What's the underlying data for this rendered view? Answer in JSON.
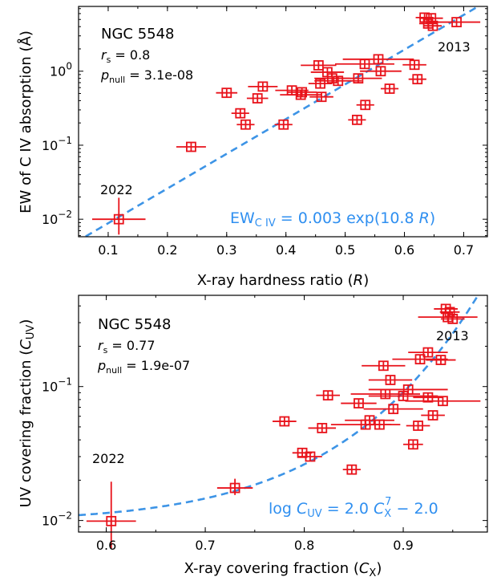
{
  "chart_data": [
    {
      "type": "scatter",
      "xlabel_main": "X-ray hardness ratio (",
      "xlabel_sym": "R",
      "xlabel_end": ")",
      "ylabel": "EW of C IV absorption (Å)",
      "xlim": [
        0.05,
        0.74
      ],
      "ylim": [
        0.0058,
        7.5
      ],
      "yscale": "log",
      "xticks": [
        "0.1",
        "0.2",
        "0.3",
        "0.4",
        "0.5",
        "0.6",
        "0.7"
      ],
      "xtick_values": [
        0.1,
        0.2,
        0.3,
        0.4,
        0.5,
        0.6,
        0.7
      ],
      "yticks": [
        {
          "value": 0.01,
          "base": "10",
          "exp": "−2"
        },
        {
          "value": 0.1,
          "base": "10",
          "exp": "−1"
        },
        {
          "value": 1,
          "base": "10",
          "exp": "0"
        }
      ],
      "annotations": {
        "object": "NGC 5548",
        "rs_sym": "r",
        "rs_sub": "s",
        "rs_val": " = 0.8",
        "pnull_sym": "p",
        "pnull_sub": "null",
        "pnull_val": " = 3.1e-08",
        "label_2013": "2013",
        "label_2022": "2022"
      },
      "fit": {
        "a": 0.003,
        "b": 10.8,
        "color": "#3d94e6"
      },
      "fit_label": {
        "lhs": "EW",
        "sub": "C IV",
        "mid": " = 0.003 exp(10.8 ",
        "sym": "R",
        "end": ")"
      },
      "points": [
        {
          "x": 0.118,
          "y": 0.01,
          "xerr": 0.045,
          "ylo": 0.0062,
          "yhi": 0.0195
        },
        {
          "x": 0.24,
          "y": 0.095,
          "xerr": 0.025
        },
        {
          "x": 0.3,
          "y": 0.51,
          "xerr": 0.018
        },
        {
          "x": 0.323,
          "y": 0.27,
          "xerr": 0.015
        },
        {
          "x": 0.332,
          "y": 0.19,
          "xerr": 0.015
        },
        {
          "x": 0.352,
          "y": 0.43,
          "xerr": 0.018
        },
        {
          "x": 0.361,
          "y": 0.62,
          "xerr": 0.025
        },
        {
          "x": 0.396,
          "y": 0.19,
          "xerr": 0.015
        },
        {
          "x": 0.41,
          "y": 0.55,
          "xerr": 0.028
        },
        {
          "x": 0.425,
          "y": 0.48,
          "xerr": 0.035
        },
        {
          "x": 0.427,
          "y": 0.52,
          "xerr": 0.025
        },
        {
          "x": 0.455,
          "y": 1.2,
          "xerr": 0.03
        },
        {
          "x": 0.458,
          "y": 0.68,
          "xerr": 0.02
        },
        {
          "x": 0.46,
          "y": 0.45,
          "xerr": 0.02
        },
        {
          "x": 0.47,
          "y": 0.97,
          "xerr": 0.028
        },
        {
          "x": 0.478,
          "y": 0.8,
          "xerr": 0.03
        },
        {
          "x": 0.488,
          "y": 0.74,
          "xerr": 0.04
        },
        {
          "x": 0.52,
          "y": 0.22,
          "xerr": 0.015
        },
        {
          "x": 0.522,
          "y": 0.8,
          "xerr": 0.04
        },
        {
          "x": 0.533,
          "y": 1.25,
          "xerr": 0.05
        },
        {
          "x": 0.534,
          "y": 0.35,
          "xerr": 0.015
        },
        {
          "x": 0.556,
          "y": 1.45,
          "xerr": 0.06
        },
        {
          "x": 0.56,
          "y": 1.0,
          "xerr": 0.035
        },
        {
          "x": 0.575,
          "y": 0.58,
          "xerr": 0.015
        },
        {
          "x": 0.617,
          "y": 1.22,
          "xerr": 0.02
        },
        {
          "x": 0.622,
          "y": 0.78,
          "xerr": 0.015
        },
        {
          "x": 0.634,
          "y": 5.3,
          "xerr": 0.015
        },
        {
          "x": 0.64,
          "y": 4.4,
          "xerr": 0.015
        },
        {
          "x": 0.645,
          "y": 5.2,
          "xerr": 0.02
        },
        {
          "x": 0.648,
          "y": 4.1,
          "xerr": 0.015
        },
        {
          "x": 0.688,
          "y": 4.6,
          "xerr": 0.04
        }
      ]
    },
    {
      "type": "scatter",
      "xlabel_main": "X-ray covering fraction (",
      "xlabel_sym": "C",
      "xlabel_sub": "X",
      "xlabel_end": ")",
      "ylabel_main": "UV covering fraction (",
      "ylabel_sym": "C",
      "ylabel_sub": "UV",
      "ylabel_end": ")",
      "xlim": [
        0.572,
        0.985
      ],
      "ylim": [
        0.0082,
        0.48
      ],
      "yscale": "log",
      "xticks": [
        "0.6",
        "0.7",
        "0.8",
        "0.9"
      ],
      "xtick_values": [
        0.6,
        0.7,
        0.8,
        0.9
      ],
      "yticks": [
        {
          "value": 0.01,
          "base": "10",
          "exp": "−2"
        },
        {
          "value": 0.1,
          "base": "10",
          "exp": "−1"
        }
      ],
      "annotations": {
        "object": "NGC 5548",
        "rs_sym": "r",
        "rs_sub": "s",
        "rs_val": " = 0.77",
        "pnull_sym": "p",
        "pnull_sub": "null",
        "pnull_val": " = 1.9e-07",
        "label_2013": "2013",
        "label_2022": "2022"
      },
      "fit": {
        "a": 2.0,
        "n": 7,
        "c": -2.0,
        "color": "#3d94e6"
      },
      "fit_label": {
        "lhs": "log ",
        "sym": "C",
        "sub": "UV",
        "mid": " = 2.0 ",
        "sym2": "C",
        "sub2": "X",
        "sup2": "7",
        "end": " − 2.0"
      },
      "points": [
        {
          "x": 0.605,
          "y": 0.0099,
          "xerr": 0.025,
          "ylo": 0.0062,
          "yhi": 0.0195
        },
        {
          "x": 0.73,
          "y": 0.0175,
          "xerr": 0.018,
          "ylo": 0.0155,
          "yhi": 0.0205
        },
        {
          "x": 0.78,
          "y": 0.055,
          "xerr": 0.012
        },
        {
          "x": 0.798,
          "y": 0.032,
          "xerr": 0.01
        },
        {
          "x": 0.806,
          "y": 0.03,
          "xerr": 0.012
        },
        {
          "x": 0.818,
          "y": 0.049,
          "xerr": 0.014
        },
        {
          "x": 0.824,
          "y": 0.086,
          "xerr": 0.012
        },
        {
          "x": 0.848,
          "y": 0.024,
          "xerr": 0.009
        },
        {
          "x": 0.855,
          "y": 0.075,
          "xerr": 0.018
        },
        {
          "x": 0.862,
          "y": 0.052,
          "xerr": 0.035
        },
        {
          "x": 0.866,
          "y": 0.056,
          "xerr": 0.025
        },
        {
          "x": 0.876,
          "y": 0.052,
          "xerr": 0.012
        },
        {
          "x": 0.88,
          "y": 0.143,
          "xerr": 0.022
        },
        {
          "x": 0.882,
          "y": 0.088,
          "xerr": 0.035
        },
        {
          "x": 0.887,
          "y": 0.112,
          "xerr": 0.022
        },
        {
          "x": 0.89,
          "y": 0.068,
          "xerr": 0.03
        },
        {
          "x": 0.9,
          "y": 0.085,
          "xerr": 0.035
        },
        {
          "x": 0.905,
          "y": 0.095,
          "xerr": 0.04
        },
        {
          "x": 0.91,
          "y": 0.037,
          "xerr": 0.01
        },
        {
          "x": 0.915,
          "y": 0.051,
          "xerr": 0.012
        },
        {
          "x": 0.917,
          "y": 0.16,
          "xerr": 0.028
        },
        {
          "x": 0.925,
          "y": 0.18,
          "xerr": 0.02
        },
        {
          "x": 0.925,
          "y": 0.083,
          "xerr": 0.015
        },
        {
          "x": 0.93,
          "y": 0.061,
          "xerr": 0.012
        },
        {
          "x": 0.94,
          "y": 0.078,
          "xerr": 0.038
        },
        {
          "x": 0.938,
          "y": 0.158,
          "xerr": 0.015
        },
        {
          "x": 0.943,
          "y": 0.38,
          "xerr": 0.012
        },
        {
          "x": 0.945,
          "y": 0.33,
          "xerr": 0.03
        },
        {
          "x": 0.947,
          "y": 0.36,
          "xerr": 0.01
        },
        {
          "x": 0.95,
          "y": 0.32,
          "xerr": 0.012
        }
      ]
    }
  ]
}
